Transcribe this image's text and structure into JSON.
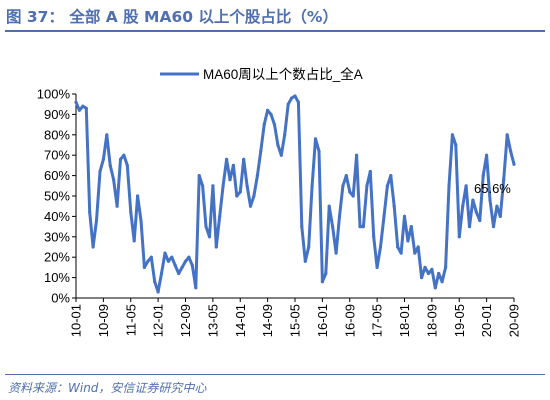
{
  "figure": {
    "title": "图 37： 全部 A 股 MA60 以上个股占比（%）",
    "source": "资料来源：Wind，安信证券研究中心"
  },
  "colors": {
    "line": "#4472C4",
    "accent": "#4F6FB0",
    "axis": "#000000",
    "background": "#ffffff"
  },
  "chart_data": {
    "type": "line",
    "title": "",
    "xlabel": "",
    "ylabel": "",
    "ylim": [
      0,
      100
    ],
    "yticks": [
      "0%",
      "10%",
      "20%",
      "30%",
      "40%",
      "50%",
      "60%",
      "70%",
      "80%",
      "90%",
      "100%"
    ],
    "xticks": [
      "10-01",
      "10-09",
      "11-05",
      "12-01",
      "12-09",
      "13-05",
      "14-01",
      "14-09",
      "15-05",
      "16-01",
      "16-09",
      "17-05",
      "18-01",
      "18-09",
      "19-05",
      "20-01",
      "20-09"
    ],
    "grid": false,
    "legend_position": "top",
    "annotation": {
      "x": "2020-09",
      "label": "65.6%",
      "value": 65.6
    },
    "series": [
      {
        "name": "MA60周以上个数占比_全A",
        "points": [
          [
            "2010-01",
            96
          ],
          [
            "2010-02",
            92
          ],
          [
            "2010-03",
            94
          ],
          [
            "2010-04",
            93
          ],
          [
            "2010-05",
            42
          ],
          [
            "2010-06",
            25
          ],
          [
            "2010-07",
            38
          ],
          [
            "2010-08",
            62
          ],
          [
            "2010-09",
            68
          ],
          [
            "2010-10",
            80
          ],
          [
            "2010-11",
            65
          ],
          [
            "2010-12",
            58
          ],
          [
            "2011-01",
            45
          ],
          [
            "2011-02",
            68
          ],
          [
            "2011-03",
            70
          ],
          [
            "2011-04",
            65
          ],
          [
            "2011-05",
            42
          ],
          [
            "2011-06",
            28
          ],
          [
            "2011-07",
            50
          ],
          [
            "2011-08",
            38
          ],
          [
            "2011-09",
            15
          ],
          [
            "2011-10",
            18
          ],
          [
            "2011-11",
            20
          ],
          [
            "2011-12",
            8
          ],
          [
            "2012-01",
            3
          ],
          [
            "2012-02",
            12
          ],
          [
            "2012-03",
            22
          ],
          [
            "2012-04",
            18
          ],
          [
            "2012-05",
            20
          ],
          [
            "2012-06",
            16
          ],
          [
            "2012-07",
            12
          ],
          [
            "2012-08",
            15
          ],
          [
            "2012-09",
            18
          ],
          [
            "2012-10",
            20
          ],
          [
            "2012-11",
            16
          ],
          [
            "2012-12",
            5
          ],
          [
            "2013-01",
            60
          ],
          [
            "2013-02",
            55
          ],
          [
            "2013-03",
            35
          ],
          [
            "2013-04",
            30
          ],
          [
            "2013-05",
            55
          ],
          [
            "2013-06",
            25
          ],
          [
            "2013-07",
            40
          ],
          [
            "2013-08",
            55
          ],
          [
            "2013-09",
            68
          ],
          [
            "2013-10",
            58
          ],
          [
            "2013-11",
            65
          ],
          [
            "2013-12",
            50
          ],
          [
            "2014-01",
            52
          ],
          [
            "2014-02",
            68
          ],
          [
            "2014-03",
            55
          ],
          [
            "2014-04",
            45
          ],
          [
            "2014-05",
            50
          ],
          [
            "2014-06",
            60
          ],
          [
            "2014-07",
            72
          ],
          [
            "2014-08",
            85
          ],
          [
            "2014-09",
            92
          ],
          [
            "2014-10",
            90
          ],
          [
            "2014-11",
            85
          ],
          [
            "2014-12",
            75
          ],
          [
            "2015-01",
            70
          ],
          [
            "2015-02",
            80
          ],
          [
            "2015-03",
            95
          ],
          [
            "2015-04",
            98
          ],
          [
            "2015-05",
            99
          ],
          [
            "2015-06",
            96
          ],
          [
            "2015-07",
            35
          ],
          [
            "2015-08",
            18
          ],
          [
            "2015-09",
            25
          ],
          [
            "2015-10",
            55
          ],
          [
            "2015-11",
            78
          ],
          [
            "2015-12",
            72
          ],
          [
            "2016-01",
            8
          ],
          [
            "2016-02",
            12
          ],
          [
            "2016-03",
            45
          ],
          [
            "2016-04",
            35
          ],
          [
            "2016-05",
            22
          ],
          [
            "2016-06",
            40
          ],
          [
            "2016-07",
            55
          ],
          [
            "2016-08",
            60
          ],
          [
            "2016-09",
            52
          ],
          [
            "2016-10",
            50
          ],
          [
            "2016-11",
            70
          ],
          [
            "2016-12",
            35
          ],
          [
            "2017-01",
            35
          ],
          [
            "2017-02",
            55
          ],
          [
            "2017-03",
            62
          ],
          [
            "2017-04",
            30
          ],
          [
            "2017-05",
            15
          ],
          [
            "2017-06",
            25
          ],
          [
            "2017-07",
            40
          ],
          [
            "2017-08",
            55
          ],
          [
            "2017-09",
            60
          ],
          [
            "2017-10",
            45
          ],
          [
            "2017-11",
            25
          ],
          [
            "2017-12",
            22
          ],
          [
            "2018-01",
            40
          ],
          [
            "2018-02",
            28
          ],
          [
            "2018-03",
            35
          ],
          [
            "2018-04",
            22
          ],
          [
            "2018-05",
            25
          ],
          [
            "2018-06",
            10
          ],
          [
            "2018-07",
            15
          ],
          [
            "2018-08",
            12
          ],
          [
            "2018-09",
            14
          ],
          [
            "2018-10",
            5
          ],
          [
            "2018-11",
            12
          ],
          [
            "2018-12",
            8
          ],
          [
            "2019-01",
            15
          ],
          [
            "2019-02",
            55
          ],
          [
            "2019-03",
            80
          ],
          [
            "2019-04",
            75
          ],
          [
            "2019-05",
            30
          ],
          [
            "2019-06",
            45
          ],
          [
            "2019-07",
            55
          ],
          [
            "2019-08",
            35
          ],
          [
            "2019-09",
            48
          ],
          [
            "2019-10",
            42
          ],
          [
            "2019-11",
            38
          ],
          [
            "2019-12",
            60
          ],
          [
            "2020-01",
            70
          ],
          [
            "2020-02",
            48
          ],
          [
            "2020-03",
            35
          ],
          [
            "2020-04",
            45
          ],
          [
            "2020-05",
            40
          ],
          [
            "2020-06",
            58
          ],
          [
            "2020-07",
            80
          ],
          [
            "2020-08",
            72
          ],
          [
            "2020-09",
            65.6
          ]
        ]
      }
    ]
  }
}
